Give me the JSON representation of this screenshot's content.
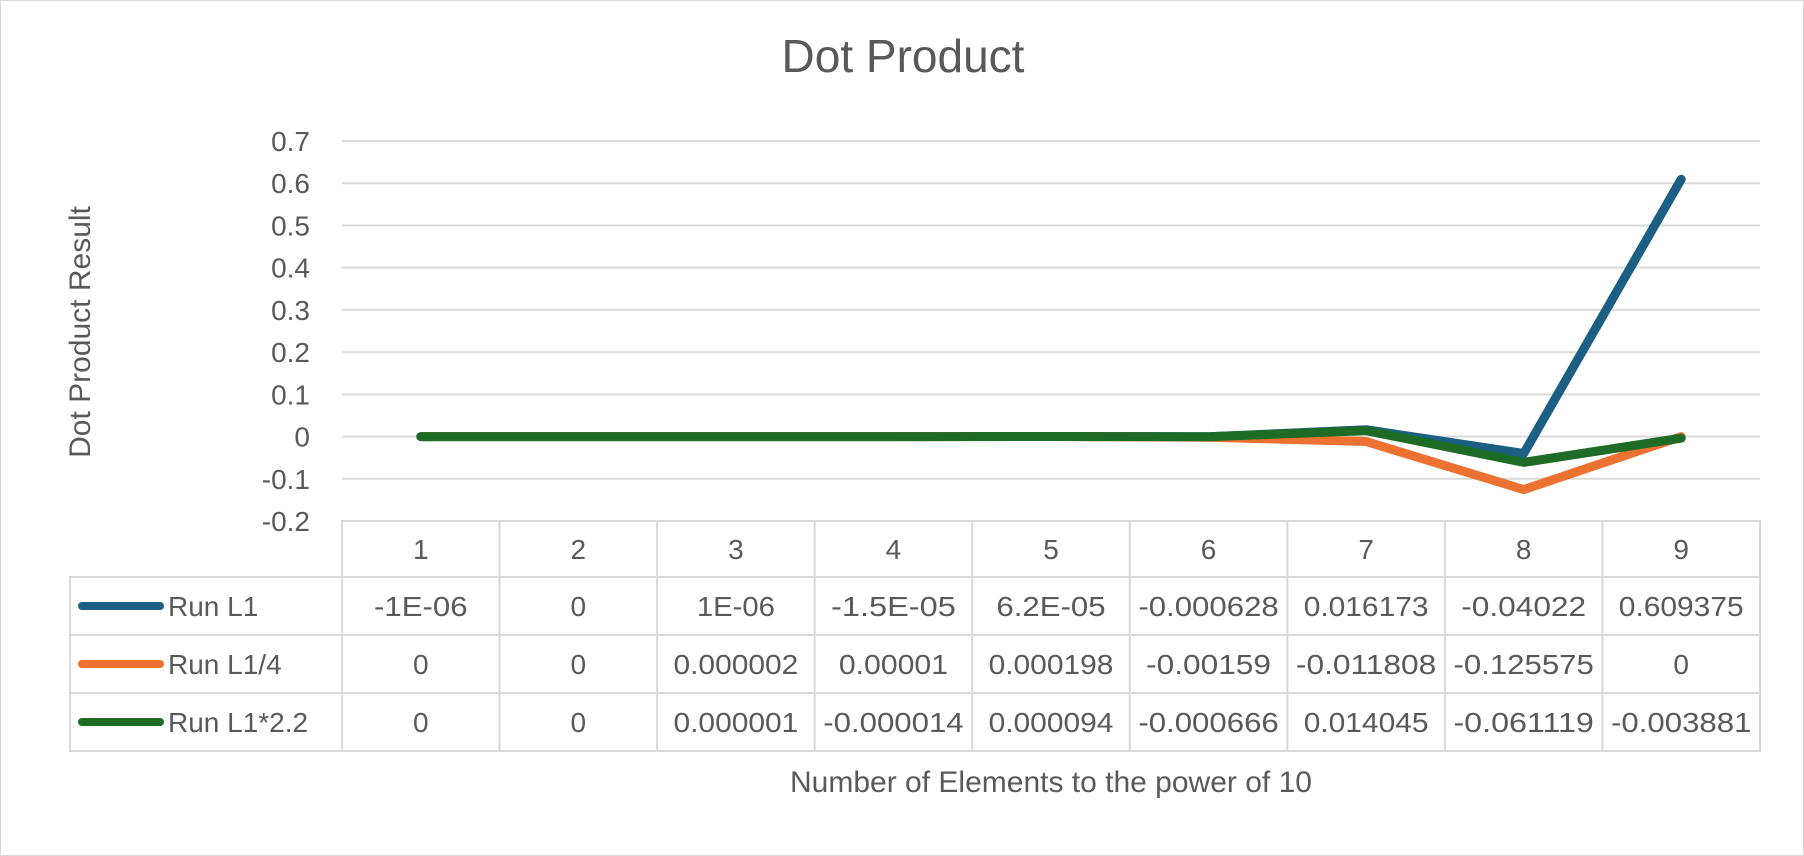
{
  "chart_data": {
    "type": "line",
    "title": "Dot Product",
    "xlabel": "Number of Elements to the power of 10",
    "ylabel": "Dot Product Result",
    "categories": [
      "1",
      "2",
      "3",
      "4",
      "5",
      "6",
      "7",
      "8",
      "9"
    ],
    "ylim": [
      -0.2,
      0.7
    ],
    "yticks": [
      "0.7",
      "0.6",
      "0.5",
      "0.4",
      "0.3",
      "0.2",
      "0.1",
      "0",
      "-0.1",
      "-0.2"
    ],
    "grid": true,
    "legend": "data-table",
    "series": [
      {
        "name": "Run L1",
        "color": "#1b5f84",
        "values": [
          -1e-06,
          0,
          1e-06,
          -1.5e-05,
          6.2e-05,
          -0.000628,
          0.016173,
          -0.04022,
          0.609375
        ],
        "labels": [
          "-1E-06",
          "0",
          "1E-06",
          "-1.5E-05",
          "6.2E-05",
          "-0.000628",
          "0.016173",
          "-0.04022",
          "0.609375"
        ]
      },
      {
        "name": "Run L1/4",
        "color": "#ed7130",
        "values": [
          0,
          0,
          2e-06,
          1e-05,
          0.000198,
          -0.00159,
          -0.011808,
          -0.125575,
          0
        ],
        "labels": [
          "0",
          "0",
          "0.000002",
          "0.00001",
          "0.000198",
          "-0.00159",
          "-0.011808",
          "-0.125575",
          "0"
        ]
      },
      {
        "name": "Run L1*2.2",
        "color": "#1d6b25",
        "values": [
          0,
          0,
          1e-06,
          -1.4e-05,
          9.4e-05,
          -0.000666,
          0.014045,
          -0.061119,
          -0.003881
        ],
        "labels": [
          "0",
          "0",
          "0.000001",
          "-0.000014",
          "0.000094",
          "-0.000666",
          "0.014045",
          "-0.061119",
          "-0.003881"
        ]
      }
    ]
  }
}
